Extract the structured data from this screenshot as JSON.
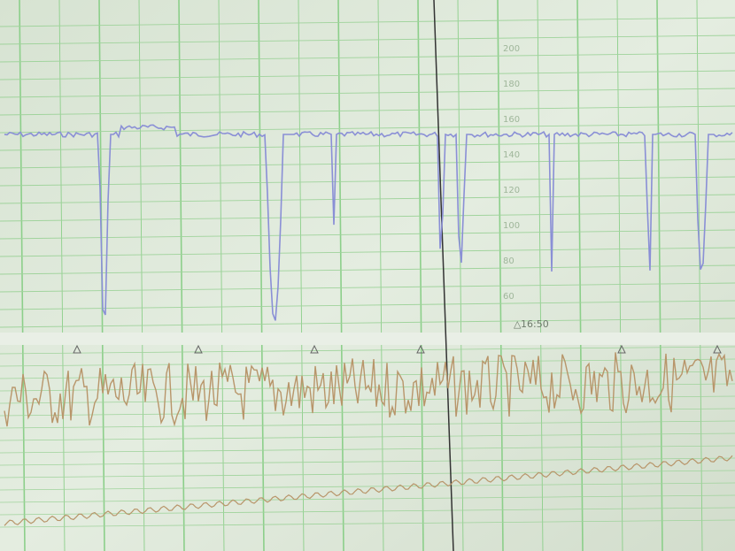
{
  "monitor": {
    "time_marker": "16:50",
    "scale_labels": [
      "200",
      "180",
      "160",
      "140",
      "120",
      "100",
      "80",
      "60"
    ]
  }
}
